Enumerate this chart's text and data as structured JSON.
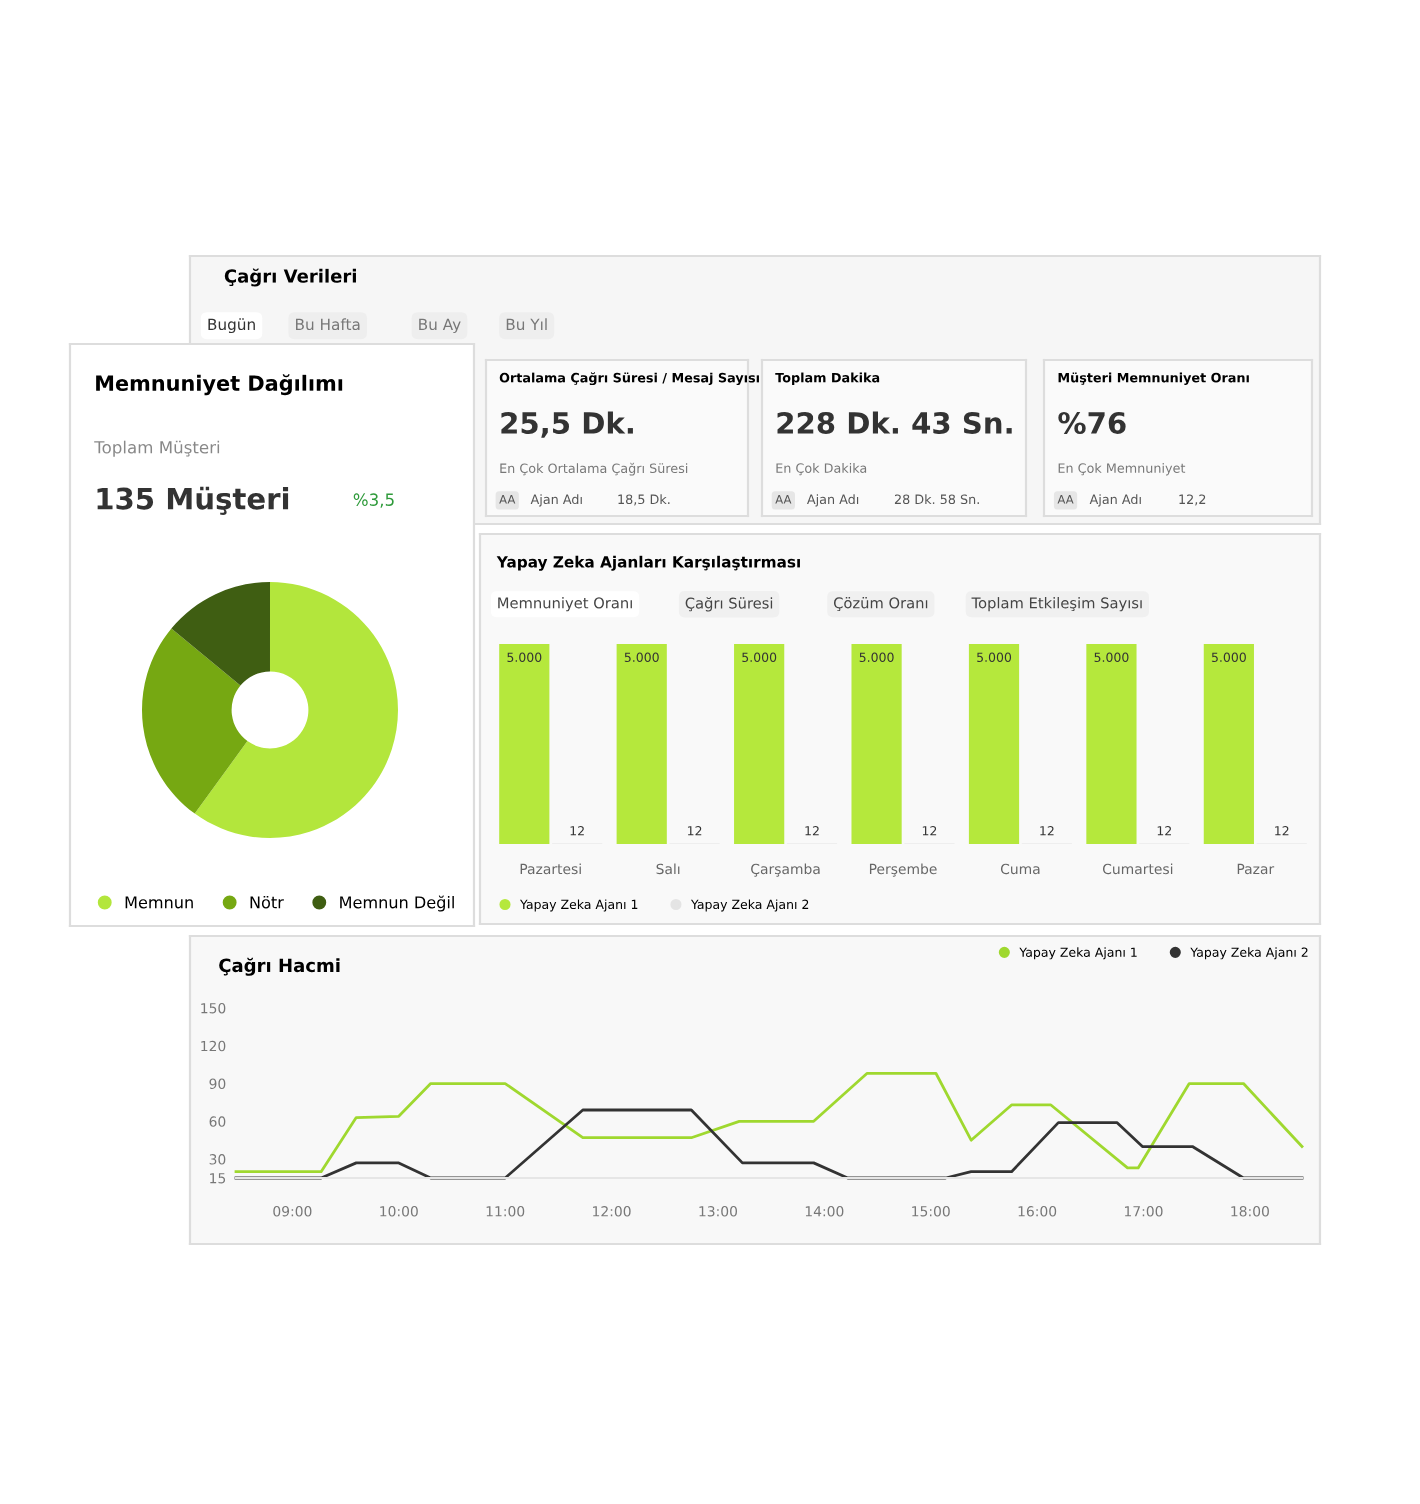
{
  "chart_data": [
    {
      "type": "other",
      "title": "Çağrı Verileri",
      "annotations": [
        "Bugün",
        "Bu Hafta",
        "Bu Ay",
        "Bu Yıl"
      ]
    },
    {
      "type": "other",
      "title": "Ortalama Çağrı Süresi / Mesaj Sayısı",
      "annotations": [
        "25,5 Dk.",
        "En Çok Ortalama Çağrı Süresi",
        "AA",
        "Ajan Adı",
        "18,5 Dk."
      ]
    },
    {
      "type": "other",
      "title": "Toplam Dakika",
      "annotations": [
        "228 Dk. 43 Sn.",
        "En Çok Dakika",
        "AA",
        "Ajan Adı",
        "28 Dk. 58 Sn."
      ]
    },
    {
      "type": "other",
      "title": "Müşteri Memnuniyet Oranı",
      "annotations": [
        "%76",
        "En Çok Memnuniyet",
        "AA",
        "Ajan Adı",
        "12,2"
      ]
    },
    {
      "type": "donut",
      "title": "Memnuniyet Dağılımı",
      "subtitle": "Toplam Müşteri",
      "annotations": [
        "135 Müşteri",
        "%3,5"
      ],
      "categories": [
        "Memnun",
        "Nötr",
        "Memnun Değil"
      ],
      "values": [
        60,
        26,
        14
      ],
      "colors": [
        "#b3e63c",
        "#76a812",
        "#3f5e12"
      ],
      "legend": "bottom"
    },
    {
      "type": "bar",
      "title": "Yapay Zeka Ajanları Karşılaştırması",
      "annotations": [
        "Memnuniyet Oranı",
        "Çağrı Süresi",
        "Çözüm Oranı",
        "Toplam Etkileşim Sayısı"
      ],
      "categories": [
        "Pazartesi",
        "Salı",
        "Çarşamba",
        "Perşembe",
        "Cuma",
        "Cumartesi",
        "Pazar"
      ],
      "legend": "bottom left",
      "series": [
        {
          "name": "Yapay Zeka Ajanı 1",
          "color": "#b5e83c",
          "values": [
            5000,
            5000,
            5000,
            5000,
            5000,
            5000,
            5000
          ],
          "value_labels": [
            "5.000",
            "5.000",
            "5.000",
            "5.000",
            "5.000",
            "5.000",
            "5.000"
          ]
        },
        {
          "name": "Yapay Zeka Ajanı 2",
          "color": "#e4e4e4",
          "values": [
            12,
            12,
            12,
            12,
            12,
            12,
            12
          ],
          "value_labels": [
            "12",
            "12",
            "12",
            "12",
            "12",
            "12",
            "12"
          ]
        }
      ]
    },
    {
      "type": "line",
      "title": "Çağrı Hacmi",
      "legend": "top right",
      "xlim": [
        8.47,
        18.49
      ],
      "xticks": [
        {
          "value": 9,
          "label": "09:00"
        },
        {
          "value": 10,
          "label": "10:00"
        },
        {
          "value": 11,
          "label": "11:00"
        },
        {
          "value": 12,
          "label": "12:00"
        },
        {
          "value": 13,
          "label": "13:00"
        },
        {
          "value": 14,
          "label": "14:00"
        },
        {
          "value": 15,
          "label": "15:00"
        },
        {
          "value": 16,
          "label": "16:00"
        },
        {
          "value": 17,
          "label": "17:00"
        },
        {
          "value": 18,
          "label": "18:00"
        }
      ],
      "ylim": [
        15,
        150
      ],
      "yticks": [
        15,
        30,
        60,
        90,
        120,
        150
      ],
      "series": [
        {
          "name": "Yapay Zeka Ajanı 1",
          "color": "#9fd82f",
          "x": [
            8.47,
            9.27,
            9.6,
            10.0,
            10.3,
            11.0,
            11.73,
            12.75,
            13.2,
            13.9,
            14.4,
            15.05,
            15.38,
            15.76,
            16.13,
            16.85,
            16.95,
            17.43,
            17.94,
            18.49
          ],
          "values": [
            20,
            20,
            63,
            64,
            90,
            90,
            47,
            47,
            60,
            60,
            98,
            98,
            45,
            73,
            73,
            23,
            23,
            90,
            90,
            40
          ]
        },
        {
          "name": "Yapay Zeka Ajanı 2",
          "color": "#333333",
          "x": [
            8.47,
            9.27,
            9.6,
            10.0,
            10.3,
            11.0,
            11.73,
            12.75,
            13.23,
            13.9,
            14.22,
            15.14,
            15.38,
            15.76,
            16.2,
            16.75,
            16.99,
            17.46,
            17.94,
            18.49
          ],
          "values": [
            15,
            15,
            27,
            27,
            15,
            15,
            69,
            69,
            27,
            27,
            15,
            15,
            20,
            20,
            59,
            59,
            40,
            40,
            15,
            15
          ]
        }
      ]
    }
  ]
}
